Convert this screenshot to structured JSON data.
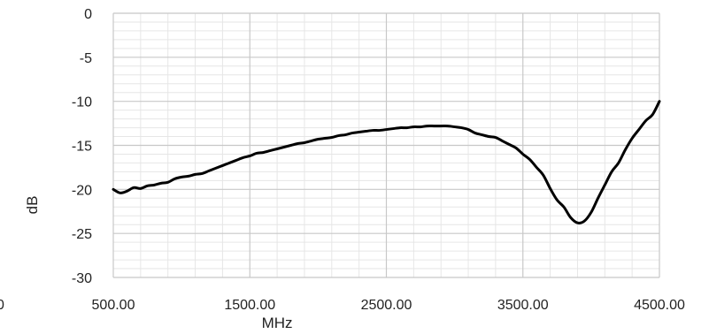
{
  "chart_data": {
    "type": "line",
    "title": "",
    "xlabel": "MHz",
    "ylabel": "dB",
    "xlim": [
      500,
      4500
    ],
    "ylim": [
      -30,
      0
    ],
    "grid": true,
    "x_tick_labels": [
      "0",
      "500.00",
      "1500.00",
      "2500.00",
      "3500.00",
      "4500.00"
    ],
    "y_tick_labels": [
      "0",
      "-5",
      "-10",
      "-15",
      "-20",
      "-25",
      "-30"
    ],
    "series": [
      {
        "color": "#000000",
        "x": [
          500,
          550,
          600,
          650,
          700,
          750,
          800,
          850,
          900,
          950,
          1000,
          1050,
          1100,
          1150,
          1200,
          1250,
          1300,
          1350,
          1400,
          1450,
          1500,
          1550,
          1600,
          1650,
          1700,
          1750,
          1800,
          1850,
          1900,
          1950,
          2000,
          2050,
          2100,
          2150,
          2200,
          2250,
          2300,
          2350,
          2400,
          2450,
          2500,
          2550,
          2600,
          2650,
          2700,
          2750,
          2800,
          2850,
          2900,
          2950,
          3000,
          3050,
          3100,
          3150,
          3200,
          3250,
          3300,
          3350,
          3400,
          3450,
          3500,
          3550,
          3600,
          3650,
          3700,
          3750,
          3800,
          3850,
          3900,
          3950,
          4000,
          4050,
          4100,
          4150,
          4200,
          4250,
          4300,
          4350,
          4400,
          4450,
          4500
        ],
        "y": [
          -20.0,
          -20.4,
          -20.2,
          -19.8,
          -19.9,
          -19.6,
          -19.5,
          -19.3,
          -19.2,
          -18.8,
          -18.6,
          -18.5,
          -18.3,
          -18.2,
          -17.9,
          -17.6,
          -17.3,
          -17.0,
          -16.7,
          -16.4,
          -16.2,
          -15.9,
          -15.8,
          -15.6,
          -15.4,
          -15.2,
          -15.0,
          -14.8,
          -14.7,
          -14.5,
          -14.3,
          -14.2,
          -14.1,
          -13.9,
          -13.8,
          -13.6,
          -13.5,
          -13.4,
          -13.3,
          -13.3,
          -13.2,
          -13.1,
          -13.0,
          -13.0,
          -12.9,
          -12.9,
          -12.8,
          -12.8,
          -12.8,
          -12.8,
          -12.9,
          -13.0,
          -13.2,
          -13.6,
          -13.8,
          -14.0,
          -14.1,
          -14.5,
          -14.9,
          -15.3,
          -16.0,
          -16.6,
          -17.5,
          -18.4,
          -19.9,
          -21.2,
          -22.0,
          -23.2,
          -23.8,
          -23.6,
          -22.6,
          -21.0,
          -19.5,
          -18.0,
          -17.0,
          -15.5,
          -14.2,
          -13.2,
          -12.2,
          -11.5,
          -10.0
        ]
      }
    ]
  }
}
